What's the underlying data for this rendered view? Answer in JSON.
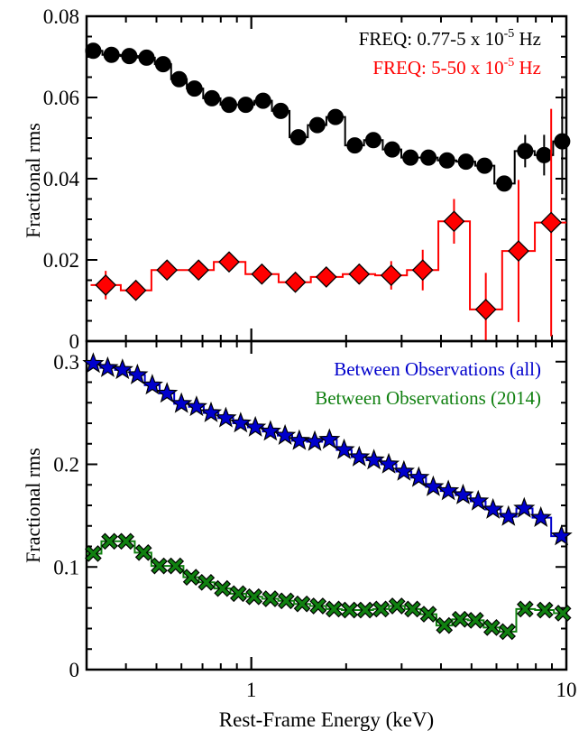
{
  "chart_data": [
    {
      "type": "scatter",
      "panel": "top",
      "xscale": "log",
      "xlim": [
        0.3,
        10
      ],
      "ylim": [
        0,
        0.08
      ],
      "ylabel": "Fractional rms",
      "yticks": [
        "0",
        "0.02",
        "0.04",
        "0.06",
        "0.08"
      ],
      "grid": false,
      "legend_position": "top-right",
      "series": [
        {
          "name": "FREQ: 0.77-5 x 10-5 Hz",
          "label_parts": {
            "text": "FREQ: 0.77-5 x 10",
            "sup": "-5",
            "tail": " Hz"
          },
          "color": "#000000",
          "marker": "circle",
          "x": [
            0.315,
            0.36,
            0.41,
            0.465,
            0.525,
            0.59,
            0.66,
            0.75,
            0.85,
            0.96,
            1.09,
            1.24,
            1.41,
            1.62,
            1.85,
            2.13,
            2.44,
            2.8,
            3.2,
            3.65,
            4.18,
            4.8,
            5.5,
            6.35,
            7.4,
            8.5,
            9.7
          ],
          "y": [
            0.0715,
            0.0705,
            0.0702,
            0.0698,
            0.0682,
            0.0645,
            0.0622,
            0.0598,
            0.0582,
            0.0582,
            0.0592,
            0.0567,
            0.0502,
            0.0532,
            0.0552,
            0.0482,
            0.0495,
            0.0472,
            0.0452,
            0.0452,
            0.0445,
            0.0442,
            0.0432,
            0.0388,
            0.0468,
            0.0458,
            0.0492
          ],
          "yerr": [
            0.0006,
            0.0006,
            0.0006,
            0.0006,
            0.0006,
            0.0006,
            0.0006,
            0.0006,
            0.0006,
            0.0007,
            0.0007,
            0.0008,
            0.0008,
            0.0009,
            0.0009,
            0.001,
            0.001,
            0.001,
            0.0011,
            0.0012,
            0.0013,
            0.0014,
            0.0015,
            0.0017,
            0.004,
            0.005,
            0.013
          ]
        },
        {
          "name": "FREQ: 5-50 x 10-5 Hz",
          "label_parts": {
            "text": "FREQ: 5-50 x 10",
            "sup": "-5",
            "tail": " Hz"
          },
          "color": "#ff0000",
          "marker": "diamond",
          "x": [
            0.345,
            0.43,
            0.54,
            0.68,
            0.85,
            1.08,
            1.38,
            1.73,
            2.2,
            2.78,
            3.5,
            4.4,
            5.55,
            7.05,
            8.95
          ],
          "y": [
            0.0138,
            0.0125,
            0.0175,
            0.0175,
            0.0195,
            0.0165,
            0.0145,
            0.0158,
            0.0165,
            0.0162,
            0.0175,
            0.0295,
            0.0078,
            0.0222,
            0.0292
          ],
          "yerr": [
            0.0035,
            0.0012,
            0.0012,
            0.0012,
            0.0015,
            0.0015,
            0.0018,
            0.0022,
            0.0025,
            0.0035,
            0.005,
            0.0055,
            0.009,
            0.0175,
            0.028
          ]
        }
      ]
    },
    {
      "type": "scatter",
      "panel": "bottom",
      "xscale": "log",
      "xlim": [
        0.3,
        10
      ],
      "ylim": [
        0,
        0.32
      ],
      "xlabel": "Rest-Frame Energy (keV)",
      "ylabel": "Fractional rms",
      "xticks": [
        "1",
        "10"
      ],
      "yticks": [
        "0",
        "0.1",
        "0.2",
        "0.3"
      ],
      "grid": false,
      "legend_position": "top-right",
      "series": [
        {
          "name": "Between Observations (all)",
          "color": "#0000cc",
          "marker": "star",
          "x": [
            0.315,
            0.35,
            0.39,
            0.435,
            0.485,
            0.54,
            0.6,
            0.67,
            0.745,
            0.83,
            0.925,
            1.03,
            1.15,
            1.28,
            1.42,
            1.59,
            1.77,
            1.97,
            2.2,
            2.45,
            2.73,
            3.05,
            3.4,
            3.78,
            4.22,
            4.7,
            5.25,
            5.85,
            6.55,
            7.35,
            8.3,
            9.65
          ],
          "y": [
            0.298,
            0.294,
            0.292,
            0.287,
            0.277,
            0.269,
            0.259,
            0.256,
            0.25,
            0.245,
            0.24,
            0.236,
            0.232,
            0.228,
            0.223,
            0.222,
            0.224,
            0.214,
            0.207,
            0.204,
            0.2,
            0.193,
            0.187,
            0.178,
            0.174,
            0.17,
            0.164,
            0.156,
            0.149,
            0.157,
            0.148,
            0.13
          ]
        },
        {
          "name": "Between Observations (2014)",
          "color": "#108010",
          "marker": "cross",
          "x": [
            0.315,
            0.355,
            0.4,
            0.455,
            0.51,
            0.575,
            0.645,
            0.72,
            0.81,
            0.91,
            1.02,
            1.15,
            1.29,
            1.45,
            1.63,
            1.83,
            2.05,
            2.3,
            2.58,
            2.9,
            3.25,
            3.65,
            4.1,
            4.6,
            5.15,
            5.8,
            6.5,
            7.4,
            8.55,
            9.75
          ],
          "y": [
            0.113,
            0.125,
            0.125,
            0.114,
            0.101,
            0.101,
            0.09,
            0.085,
            0.079,
            0.074,
            0.071,
            0.069,
            0.067,
            0.064,
            0.062,
            0.059,
            0.058,
            0.058,
            0.059,
            0.062,
            0.059,
            0.054,
            0.043,
            0.049,
            0.048,
            0.041,
            0.037,
            0.059,
            0.058,
            0.055
          ]
        }
      ]
    }
  ]
}
